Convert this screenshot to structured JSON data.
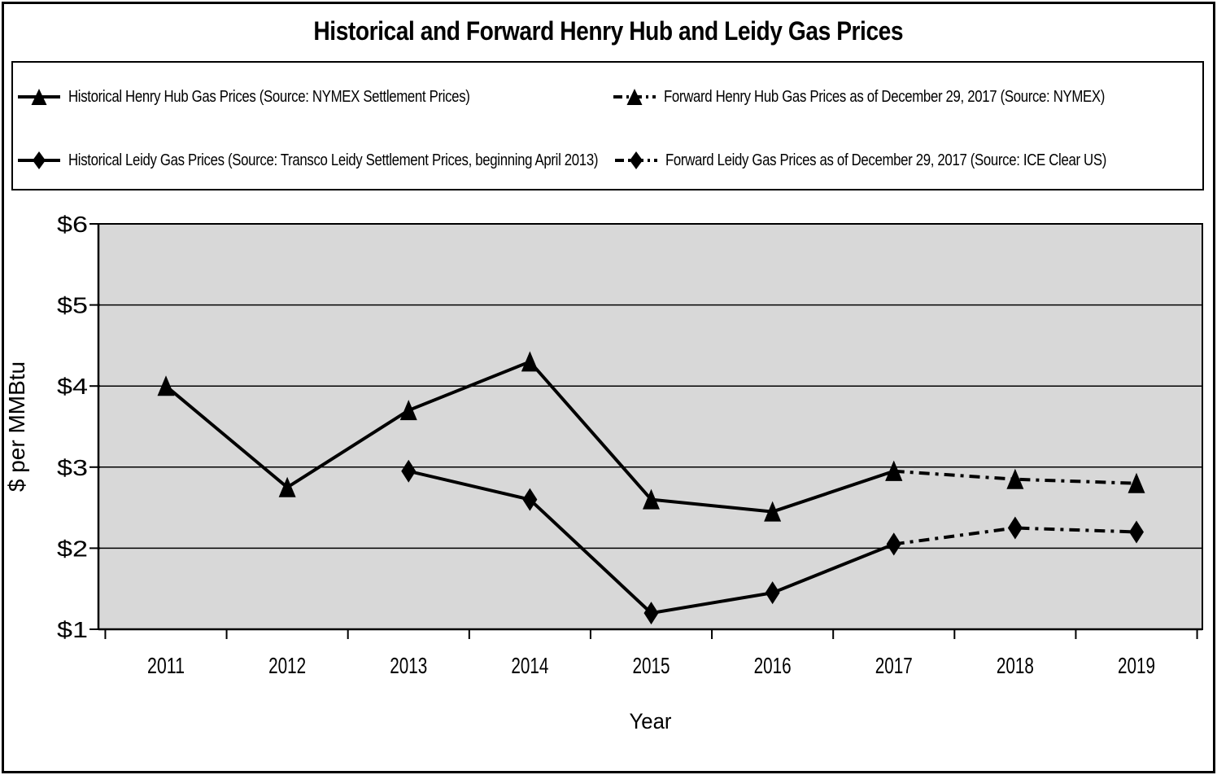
{
  "title": "Historical and Forward Henry Hub and Leidy Gas Prices",
  "legend": {
    "items": [
      {
        "label": "Historical Henry Hub Gas Prices (Source: NYMEX Settlement Prices)",
        "marker": "triangle",
        "line": "solid"
      },
      {
        "label": "Forward Henry Hub Gas Prices as of December 29, 2017 (Source: NYMEX)",
        "marker": "triangle",
        "line": "dashdot"
      },
      {
        "label": "Historical Leidy Gas Prices (Source: Transco Leidy Settlement Prices, beginning April 2013)",
        "marker": "diamond",
        "line": "solid"
      },
      {
        "label": "Forward Leidy Gas Prices as of December 29, 2017 (Source: ICE Clear US)",
        "marker": "diamond",
        "line": "dashdot"
      }
    ]
  },
  "chart_data": {
    "type": "line",
    "title": "Historical and Forward Henry Hub and Leidy Gas Prices",
    "xlabel": "Year",
    "ylabel": "$ per MMBtu",
    "x_categories": [
      "2011",
      "2012",
      "2013",
      "2014",
      "2015",
      "2016",
      "2017",
      "2018",
      "2019"
    ],
    "ylim": [
      1,
      6
    ],
    "ytick_labels": [
      "$1",
      "$2",
      "$3",
      "$4",
      "$5",
      "$6"
    ],
    "grid": "horizontal",
    "legend_position": "top",
    "colors": {
      "line": "#000000",
      "plot_background": "#D8D8D8",
      "page_background": "#FFFFFF"
    },
    "series": [
      {
        "name": "Historical Henry Hub Gas Prices (Source: NYMEX Settlement Prices)",
        "marker": "triangle",
        "line": "solid",
        "points": [
          [
            2011,
            4.0
          ],
          [
            2012,
            2.75
          ],
          [
            2013,
            3.7
          ],
          [
            2014,
            4.3
          ],
          [
            2015,
            2.6
          ],
          [
            2016,
            2.45
          ],
          [
            2017,
            2.95
          ]
        ]
      },
      {
        "name": "Forward Henry Hub Gas Prices as of December 29, 2017 (Source: NYMEX)",
        "marker": "triangle",
        "line": "dashdot",
        "points": [
          [
            2017,
            2.95
          ],
          [
            2018,
            2.85
          ],
          [
            2019,
            2.8
          ]
        ]
      },
      {
        "name": "Historical Leidy Gas Prices (Source: Transco Leidy Settlement Prices, beginning April 2013)",
        "marker": "diamond",
        "line": "solid",
        "points": [
          [
            2013,
            2.95
          ],
          [
            2014,
            2.6
          ],
          [
            2015,
            1.2
          ],
          [
            2016,
            1.45
          ],
          [
            2017,
            2.05
          ]
        ]
      },
      {
        "name": "Forward Leidy Gas Prices as of December 29, 2017 (Source: ICE Clear US)",
        "marker": "diamond",
        "line": "dashdot",
        "points": [
          [
            2017,
            2.05
          ],
          [
            2018,
            2.25
          ],
          [
            2019,
            2.2
          ]
        ]
      }
    ]
  }
}
